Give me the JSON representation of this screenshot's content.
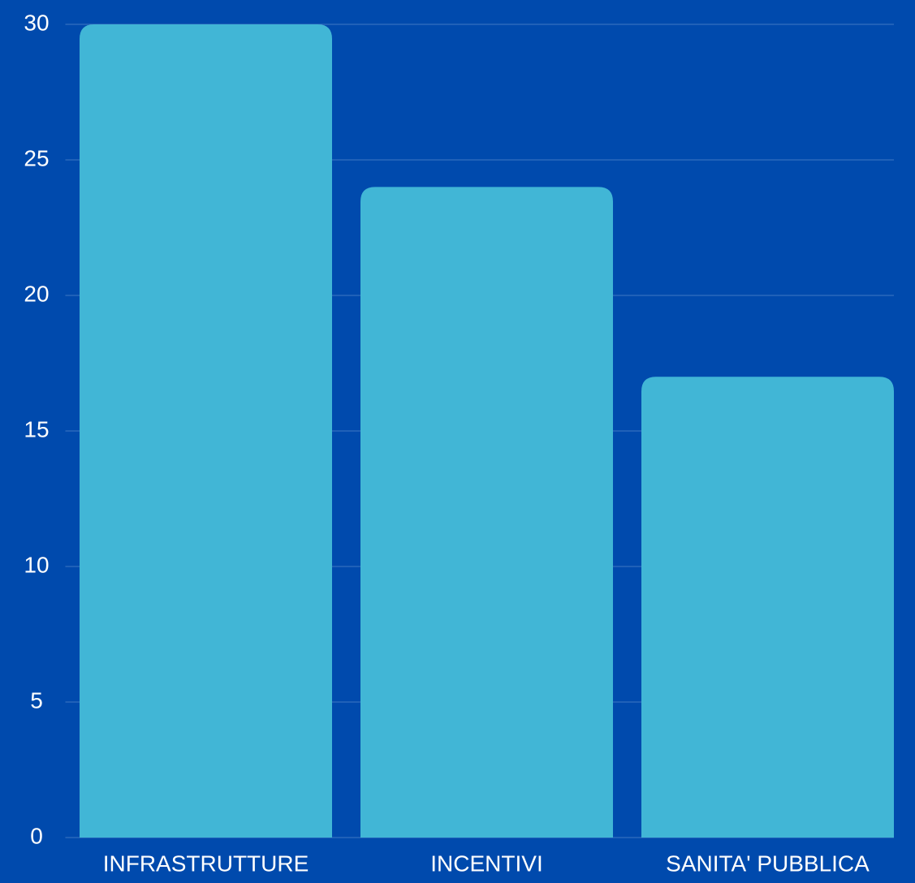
{
  "chart_data": {
    "type": "bar",
    "categories": [
      "INFRASTRUTTURE",
      "INCENTIVI",
      "SANITA' PUBBLICA"
    ],
    "values": [
      30,
      24,
      17
    ],
    "color": "#41b6d6",
    "ylim": [
      0,
      30
    ],
    "yticks": [
      0,
      5,
      10,
      15,
      20,
      25,
      30
    ],
    "grid": true
  }
}
